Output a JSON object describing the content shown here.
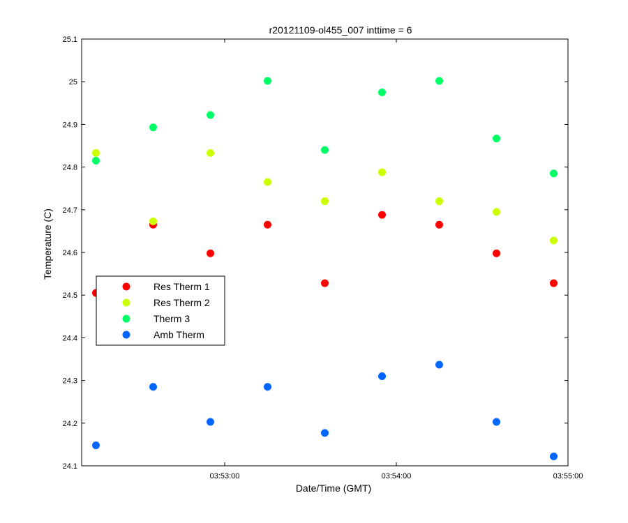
{
  "chart_data": {
    "type": "scatter",
    "title": "r20121109-ol455_007 inttime = 6",
    "xlabel": "Date/Time (GMT)",
    "ylabel": "Temperature (C)",
    "xlim": [
      "03:52:10",
      "03:55:00"
    ],
    "ylim": [
      24.1,
      25.1
    ],
    "yticks": [
      24.1,
      24.2,
      24.3,
      24.4,
      24.5,
      24.6,
      24.7,
      24.8,
      24.9,
      25,
      25.1
    ],
    "xticks": [
      "03:53:00",
      "03:54:00",
      "03:55:00"
    ],
    "x": [
      "03:52:15",
      "03:52:35",
      "03:52:55",
      "03:53:15",
      "03:53:35",
      "03:53:55",
      "03:54:15",
      "03:54:35",
      "03:54:55"
    ],
    "legend_position": "center-left",
    "grid": false,
    "series": [
      {
        "name": "Res Therm 1",
        "color": "#ff0000",
        "values": [
          24.505,
          24.665,
          24.598,
          24.665,
          24.528,
          24.688,
          24.665,
          24.598,
          24.528
        ]
      },
      {
        "name": "Res Therm 2",
        "color": "#ccff00",
        "values": [
          24.833,
          24.673,
          24.833,
          24.765,
          24.72,
          24.788,
          24.72,
          24.695,
          24.628
        ]
      },
      {
        "name": "Therm 3",
        "color": "#00ff66",
        "values": [
          24.815,
          24.893,
          24.922,
          25.002,
          24.84,
          24.975,
          25.002,
          24.867,
          24.785
        ]
      },
      {
        "name": "Amb Therm",
        "color": "#0066ff",
        "values": [
          24.148,
          24.285,
          24.203,
          24.285,
          24.177,
          24.31,
          24.337,
          24.203,
          24.122
        ]
      }
    ]
  }
}
